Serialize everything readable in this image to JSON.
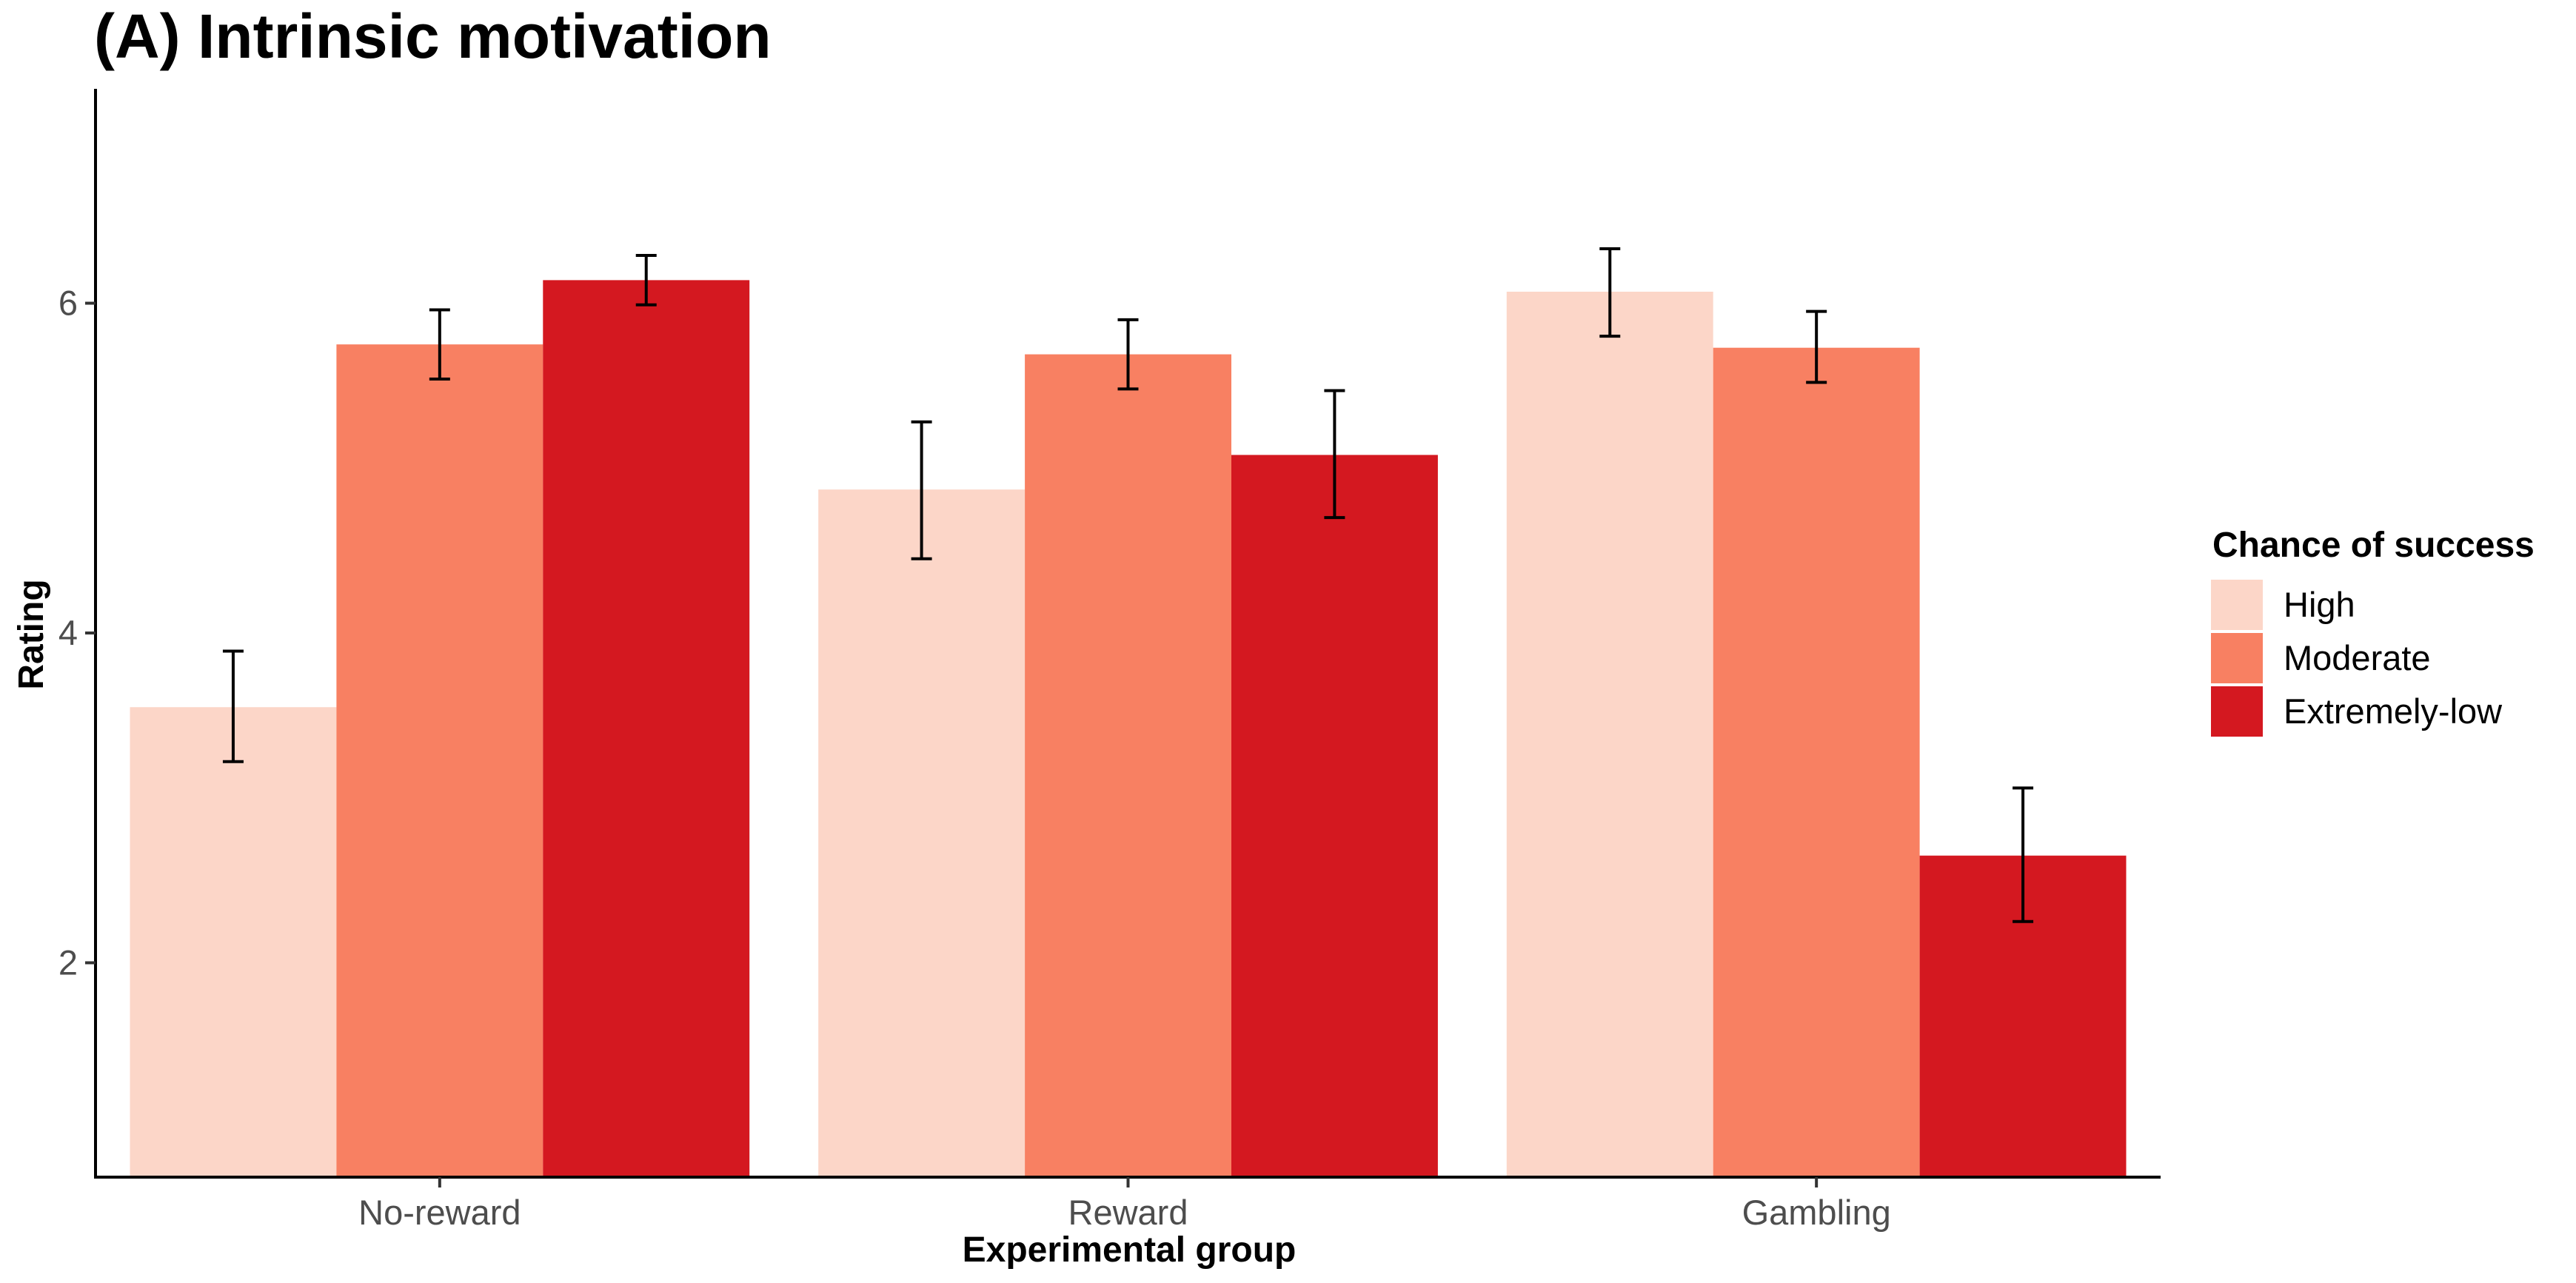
{
  "chart_data": {
    "type": "bar",
    "title": "(A) Intrinsic motivation",
    "xlabel": "Experimental group",
    "ylabel": "Rating",
    "categories": [
      "No-reward",
      "Reward",
      "Gambling"
    ],
    "ylim": [
      0.7,
      7.3
    ],
    "yticks": [
      "2",
      "4",
      "6"
    ],
    "legend_title": "Chance of success",
    "legend_position": "right",
    "grid": false,
    "series": [
      {
        "name": "High",
        "color": "#fcd6c8",
        "values": [
          3.55,
          4.87,
          6.07
        ],
        "error_low": [
          3.22,
          4.45,
          5.8
        ],
        "error_high": [
          3.89,
          5.28,
          6.33
        ]
      },
      {
        "name": "Moderate",
        "color": "#f88062",
        "values": [
          5.75,
          5.69,
          5.73
        ],
        "error_low": [
          5.54,
          5.48,
          5.52
        ],
        "error_high": [
          5.96,
          5.9,
          5.95
        ]
      },
      {
        "name": "Extremely-low",
        "color": "#d41820",
        "values": [
          6.14,
          5.08,
          2.65
        ],
        "error_low": [
          5.99,
          4.7,
          2.25
        ],
        "error_high": [
          6.29,
          5.47,
          3.06
        ]
      }
    ]
  }
}
